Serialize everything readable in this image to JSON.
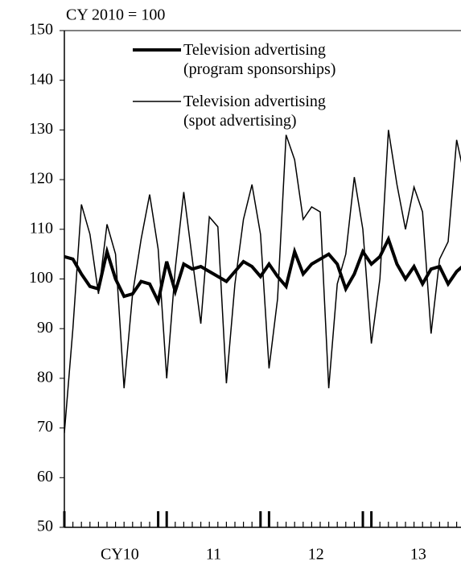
{
  "chart_data": {
    "type": "line",
    "subtitle": "CY 2010 = 100",
    "categories": [
      null,
      null,
      null,
      null,
      null,
      null,
      null,
      null,
      null,
      null,
      null,
      null,
      null,
      null,
      null,
      null,
      null,
      null,
      null,
      null,
      null,
      null,
      null,
      null,
      null,
      null,
      null,
      null,
      null,
      null,
      null,
      null,
      null,
      null,
      null,
      null,
      null,
      null,
      null,
      null,
      null,
      null,
      null,
      null,
      null,
      null,
      null,
      null
    ],
    "series": [
      {
        "name": "Television advertising (program sponsorships)",
        "color": "#000000",
        "width": 4,
        "values": [
          104.5,
          104,
          101,
          98.5,
          98,
          105.5,
          100,
          96.5,
          97,
          99.5,
          99,
          95.5,
          103.5,
          97.5,
          103,
          102,
          102.5,
          101.5,
          100.5,
          99.5,
          101.5,
          103.5,
          102.5,
          100.5,
          103,
          100.5,
          98.5,
          105.5,
          101,
          103,
          104,
          105,
          103,
          98,
          101,
          105.5,
          103,
          104.5,
          108,
          103,
          100,
          102.5,
          99,
          102,
          102.5,
          99,
          101.5,
          103
        ]
      },
      {
        "name": "Television advertising (spot advertising)",
        "color": "#000000",
        "width": 1.5,
        "values": [
          69,
          90,
          115,
          109,
          97,
          111,
          105,
          78,
          97,
          108,
          117,
          106,
          80,
          102,
          117.5,
          104,
          91,
          112.5,
          110.5,
          79,
          99,
          112,
          119,
          109,
          82,
          96,
          129,
          124,
          112,
          114.5,
          113.5,
          78,
          99,
          105,
          120.5,
          110,
          87,
          100,
          130,
          119,
          110,
          118.5,
          113.5,
          89,
          104,
          107.5,
          128,
          120
        ]
      }
    ],
    "xlim": [
      0,
      46.5
    ],
    "xticks": [
      {
        "value": 6.5,
        "label": "CY10"
      },
      {
        "value": 17.5,
        "label": "11"
      },
      {
        "value": 29.5,
        "label": "12"
      },
      {
        "value": 41.5,
        "label": "13"
      }
    ],
    "ylim": [
      50,
      150
    ],
    "yticks": [
      50,
      60,
      70,
      80,
      90,
      100,
      110,
      120,
      130,
      140,
      150
    ]
  }
}
